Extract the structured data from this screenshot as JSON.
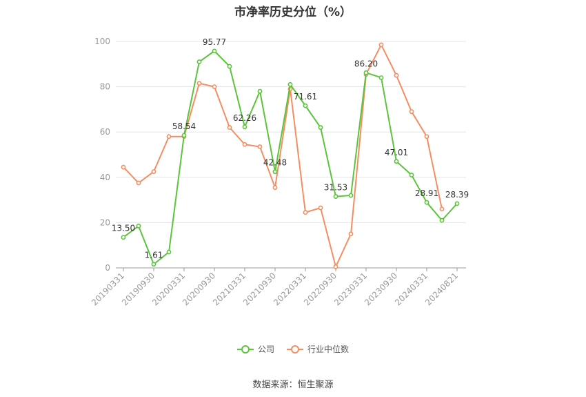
{
  "chart_data": {
    "type": "line",
    "title": "市净率历史分位（%）",
    "xlabel": "",
    "ylabel": "",
    "ylim": [
      0,
      100
    ],
    "y_ticks": [
      0,
      20,
      40,
      60,
      80,
      100
    ],
    "grid": true,
    "legend_position": "bottom",
    "x_tick_labels": [
      "20190331",
      "20190930",
      "20200331",
      "20200930",
      "20210331",
      "20210930",
      "20220331",
      "20220930",
      "20230331",
      "20230930",
      "20240331",
      "20240821"
    ],
    "x_tick_indices": [
      0,
      2,
      4,
      6,
      8,
      10,
      12,
      14,
      16,
      18,
      20,
      22
    ],
    "series": [
      {
        "name": "公司",
        "color": "#5ac43b",
        "values": [
          13.5,
          18.5,
          1.61,
          7.0,
          58.54,
          91.0,
          95.77,
          89.0,
          62.26,
          78.0,
          42.48,
          81.0,
          71.61,
          62.0,
          31.53,
          32.0,
          86.2,
          84.0,
          47.01,
          41.0,
          28.91,
          21.0,
          28.39
        ],
        "labels": {
          "0": "13.50",
          "2": "1.61",
          "4": "58.54",
          "6": "95.77",
          "8": "62.26",
          "10": "42.48",
          "12": "71.61",
          "14": "31.53",
          "16": "86.20",
          "18": "47.01",
          "20": "28.91",
          "22": "28.39"
        }
      },
      {
        "name": "行业中位数",
        "color": "#f28e62",
        "values": [
          44.5,
          37.5,
          42.5,
          58.0,
          58.0,
          81.5,
          80.0,
          62.0,
          54.5,
          53.5,
          35.5,
          79.0,
          24.5,
          26.5,
          0.5,
          15.0,
          85.5,
          98.5,
          85.0,
          69.0,
          58.0,
          26.0
        ]
      }
    ]
  },
  "source_text": "数据来源：恒生聚源"
}
